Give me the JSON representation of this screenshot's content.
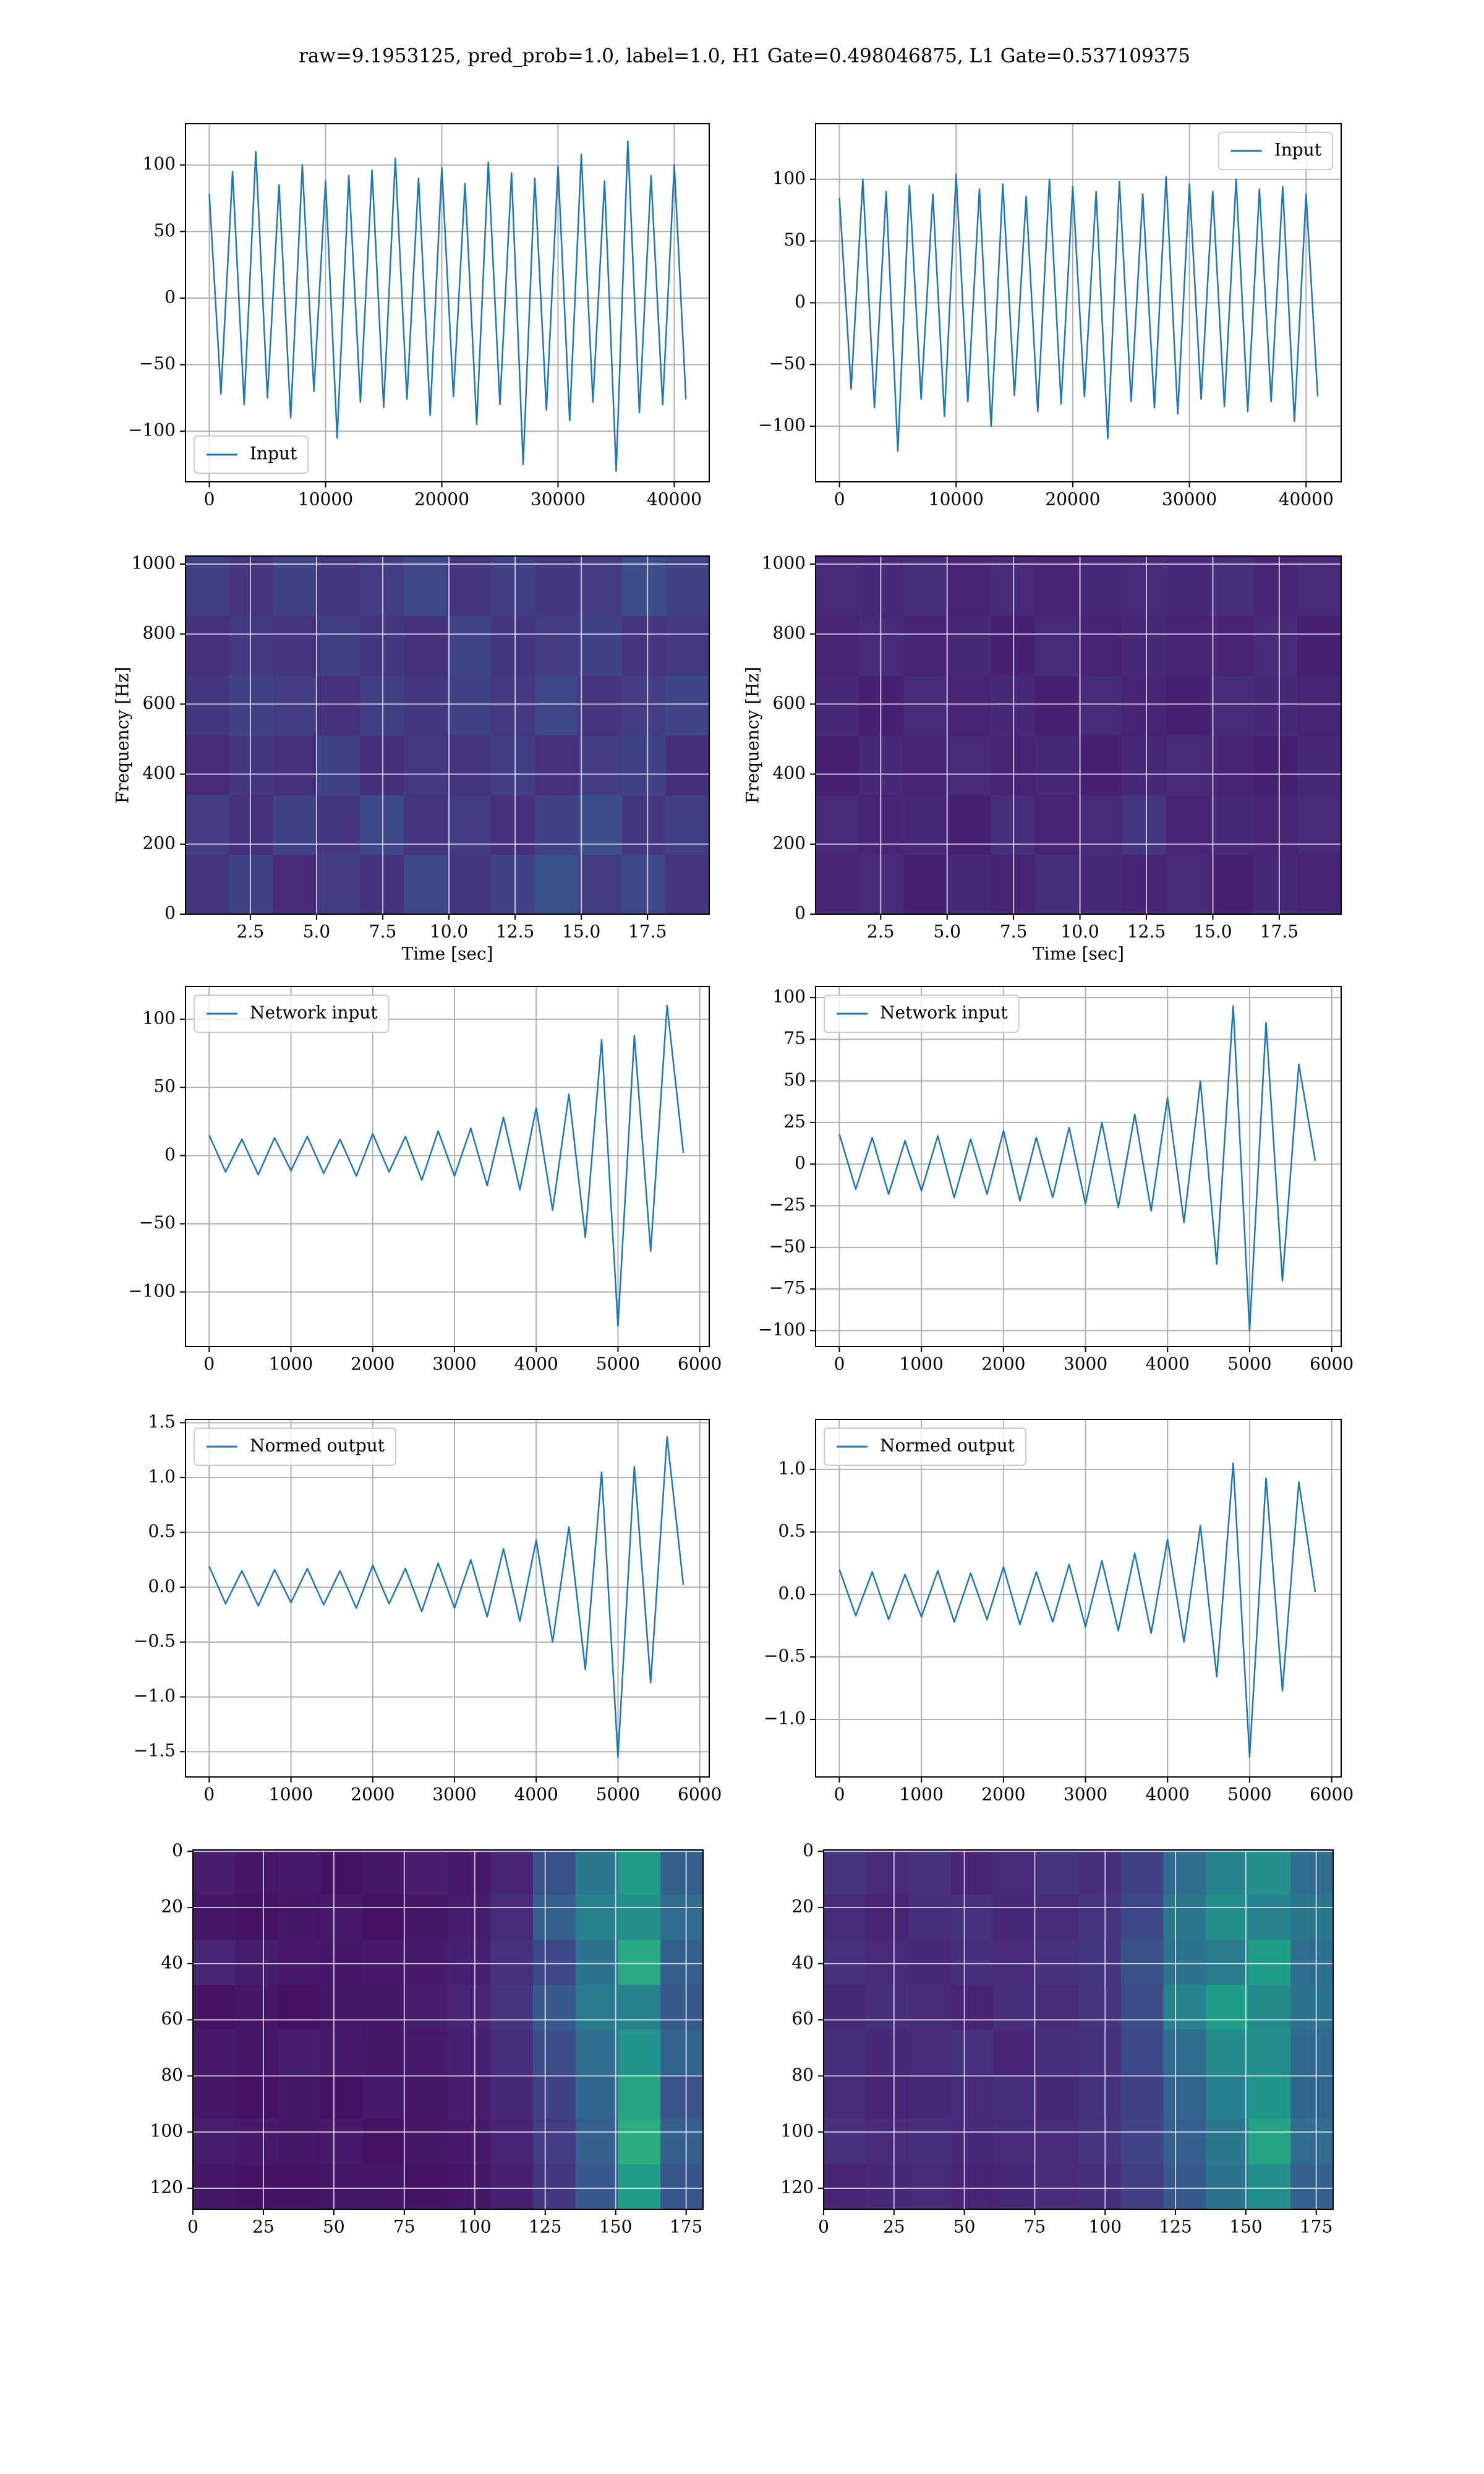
{
  "title": "raw=9.1953125, pred_prob=1.0, label=1.0, H1 Gate=0.498046875, L1 Gate=0.537109375",
  "chart_data": [
    {
      "type": "line",
      "legend": "lower left",
      "grid": true,
      "x": [
        0,
        1000,
        2000,
        3000,
        4000,
        5000,
        6000,
        7000,
        8000,
        9000,
        10000,
        11000,
        12000,
        13000,
        14000,
        15000,
        16000,
        17000,
        18000,
        19000,
        20000,
        21000,
        22000,
        23000,
        24000,
        25000,
        26000,
        27000,
        28000,
        29000,
        30000,
        31000,
        32000,
        33000,
        34000,
        35000,
        36000,
        37000,
        38000,
        39000,
        40000,
        41000
      ],
      "series": [
        {
          "name": "Input",
          "color": "#1f77b4",
          "values": [
            78,
            -72,
            95,
            -80,
            110,
            -75,
            85,
            -90,
            100,
            -70,
            88,
            -105,
            92,
            -78,
            96,
            -82,
            105,
            -76,
            90,
            -88,
            98,
            -74,
            86,
            -95,
            102,
            -80,
            94,
            -125,
            90,
            -84,
            99,
            -92,
            108,
            -78,
            88,
            -130,
            118,
            -86,
            92,
            -80,
            100,
            -76
          ]
        }
      ],
      "xlim": [
        -2048,
        43008
      ],
      "ylim": [
        -138,
        131
      ],
      "xticks": [
        0,
        10000,
        20000,
        30000,
        40000
      ],
      "yticks": [
        {
          "value": -100,
          "label": "−100"
        },
        {
          "value": -50,
          "label": "−50"
        },
        0,
        50,
        100
      ]
    },
    {
      "type": "line",
      "legend": "upper right",
      "grid": true,
      "x": [
        0,
        1000,
        2000,
        3000,
        4000,
        5000,
        6000,
        7000,
        8000,
        9000,
        10000,
        11000,
        12000,
        13000,
        14000,
        15000,
        16000,
        17000,
        18000,
        19000,
        20000,
        21000,
        22000,
        23000,
        24000,
        25000,
        26000,
        27000,
        28000,
        29000,
        30000,
        31000,
        32000,
        33000,
        34000,
        35000,
        36000,
        37000,
        38000,
        39000,
        40000,
        41000
      ],
      "series": [
        {
          "name": "Input",
          "color": "#1f77b4",
          "values": [
            85,
            -70,
            100,
            -85,
            90,
            -120,
            95,
            -78,
            88,
            -92,
            104,
            -80,
            92,
            -100,
            96,
            -75,
            86,
            -88,
            100,
            -82,
            94,
            -76,
            90,
            -110,
            98,
            -80,
            88,
            -85,
            102,
            -90,
            96,
            -78,
            90,
            -84,
            100,
            -88,
            92,
            -80,
            94,
            -96,
            88,
            -76
          ]
        }
      ],
      "xlim": [
        -2048,
        43008
      ],
      "ylim": [
        -145,
        145
      ],
      "xticks": [
        0,
        10000,
        20000,
        30000,
        40000
      ],
      "yticks": [
        {
          "value": -100,
          "label": "−100"
        },
        {
          "value": -50,
          "label": "−50"
        },
        0,
        50,
        100
      ]
    },
    {
      "type": "heatmap",
      "colormap": "viridis",
      "grid": true,
      "xlabel": "Time [sec]",
      "ylabel": "Frequency [Hz]",
      "xlim": [
        0.05,
        19.83
      ],
      "ylim": [
        0,
        1023
      ],
      "xticks": [
        2.5,
        {
          "value": 5,
          "label": "5.0"
        },
        7.5,
        {
          "value": 10,
          "label": "10.0"
        },
        12.5,
        {
          "value": 15,
          "label": "15.0"
        },
        17.5
      ],
      "yticks": [
        0,
        200,
        400,
        600,
        800,
        1000
      ],
      "z": [
        [
          0.15,
          0.2,
          0.12,
          0.18,
          0.14,
          0.22,
          0.16,
          0.2,
          0.25,
          0.18,
          0.22,
          0.15
        ],
        [
          0.18,
          0.14,
          0.2,
          0.16,
          0.22,
          0.15,
          0.18,
          0.14,
          0.2,
          0.24,
          0.16,
          0.19
        ],
        [
          0.12,
          0.16,
          0.14,
          0.2,
          0.13,
          0.17,
          0.15,
          0.19,
          0.14,
          0.18,
          0.2,
          0.13
        ],
        [
          0.16,
          0.2,
          0.18,
          0.14,
          0.19,
          0.16,
          0.2,
          0.17,
          0.22,
          0.15,
          0.18,
          0.21
        ],
        [
          0.14,
          0.17,
          0.15,
          0.19,
          0.16,
          0.14,
          0.21,
          0.16,
          0.18,
          0.2,
          0.15,
          0.17
        ],
        [
          0.19,
          0.15,
          0.2,
          0.16,
          0.18,
          0.22,
          0.15,
          0.19,
          0.16,
          0.18,
          0.24,
          0.2
        ]
      ]
    },
    {
      "type": "heatmap",
      "colormap": "viridis",
      "grid": true,
      "xlabel": "Time [sec]",
      "ylabel": "Frequency [Hz]",
      "xlim": [
        0.05,
        19.83
      ],
      "ylim": [
        0,
        1023
      ],
      "xticks": [
        2.5,
        {
          "value": 5,
          "label": "5.0"
        },
        7.5,
        {
          "value": 10,
          "label": "10.0"
        },
        12.5,
        {
          "value": 15,
          "label": "15.0"
        },
        17.5
      ],
      "yticks": [
        0,
        200,
        400,
        600,
        800,
        1000
      ],
      "z": [
        [
          0.1,
          0.12,
          0.09,
          0.11,
          0.1,
          0.13,
          0.11,
          0.1,
          0.12,
          0.09,
          0.11,
          0.1
        ],
        [
          0.12,
          0.1,
          0.11,
          0.09,
          0.13,
          0.1,
          0.12,
          0.16,
          0.1,
          0.11,
          0.1,
          0.12
        ],
        [
          0.09,
          0.11,
          0.1,
          0.12,
          0.1,
          0.11,
          0.09,
          0.11,
          0.12,
          0.1,
          0.09,
          0.11
        ],
        [
          0.11,
          0.09,
          0.12,
          0.1,
          0.11,
          0.09,
          0.12,
          0.1,
          0.09,
          0.12,
          0.11,
          0.1
        ],
        [
          0.1,
          0.12,
          0.1,
          0.11,
          0.09,
          0.12,
          0.1,
          0.11,
          0.1,
          0.1,
          0.12,
          0.09
        ],
        [
          0.12,
          0.11,
          0.13,
          0.1,
          0.12,
          0.1,
          0.11,
          0.12,
          0.11,
          0.13,
          0.1,
          0.12
        ]
      ]
    },
    {
      "type": "line",
      "legend": "upper left",
      "grid": true,
      "x": [
        0,
        200,
        400,
        600,
        800,
        1000,
        1200,
        1400,
        1600,
        1800,
        2000,
        2200,
        2400,
        2600,
        2800,
        3000,
        3200,
        3400,
        3600,
        3800,
        4000,
        4200,
        4400,
        4600,
        4800,
        5000,
        5200,
        5400,
        5600,
        5800
      ],
      "series": [
        {
          "name": "Network input",
          "color": "#1f77b4",
          "values": [
            15,
            -12,
            12,
            -14,
            13,
            -11,
            14,
            -13,
            12,
            -15,
            16,
            -12,
            14,
            -18,
            18,
            -15,
            20,
            -22,
            28,
            -25,
            35,
            -40,
            45,
            -60,
            85,
            -125,
            88,
            -70,
            110,
            2
          ]
        }
      ],
      "xlim": [
        -290,
        6116
      ],
      "ylim": [
        -140,
        124
      ],
      "xticks": [
        0,
        1000,
        2000,
        3000,
        4000,
        5000,
        6000
      ],
      "yticks": [
        {
          "value": -100,
          "label": "−100"
        },
        {
          "value": -50,
          "label": "−50"
        },
        0,
        50,
        100
      ]
    },
    {
      "type": "line",
      "legend": "upper left",
      "grid": true,
      "x": [
        0,
        200,
        400,
        600,
        800,
        1000,
        1200,
        1400,
        1600,
        1800,
        2000,
        2200,
        2400,
        2600,
        2800,
        3000,
        3200,
        3400,
        3600,
        3800,
        4000,
        4200,
        4400,
        4600,
        4800,
        5000,
        5200,
        5400,
        5600,
        5800
      ],
      "series": [
        {
          "name": "Network input",
          "color": "#1f77b4",
          "values": [
            18,
            -15,
            16,
            -18,
            14,
            -16,
            17,
            -20,
            15,
            -18,
            20,
            -22,
            16,
            -20,
            22,
            -24,
            25,
            -26,
            30,
            -28,
            40,
            -35,
            50,
            -60,
            95,
            -100,
            85,
            -70,
            60,
            2
          ]
        }
      ],
      "xlim": [
        -290,
        6116
      ],
      "ylim": [
        -109.5,
        106.7
      ],
      "xticks": [
        0,
        1000,
        2000,
        3000,
        4000,
        5000,
        6000
      ],
      "yticks": [
        {
          "value": -100,
          "label": "−100"
        },
        {
          "value": -75,
          "label": "−75"
        },
        {
          "value": -50,
          "label": "−50"
        },
        {
          "value": -25,
          "label": "−25"
        },
        0,
        25,
        50,
        75,
        100
      ]
    },
    {
      "type": "line",
      "legend": "upper left",
      "grid": true,
      "x": [
        0,
        200,
        400,
        600,
        800,
        1000,
        1200,
        1400,
        1600,
        1800,
        2000,
        2200,
        2400,
        2600,
        2800,
        3000,
        3200,
        3400,
        3600,
        3800,
        4000,
        4200,
        4400,
        4600,
        4800,
        5000,
        5200,
        5400,
        5600,
        5800
      ],
      "series": [
        {
          "name": "Normed output",
          "color": "#1f77b4",
          "values": [
            0.19,
            -0.15,
            0.15,
            -0.17,
            0.16,
            -0.14,
            0.17,
            -0.16,
            0.15,
            -0.19,
            0.2,
            -0.15,
            0.17,
            -0.22,
            0.22,
            -0.19,
            0.25,
            -0.27,
            0.35,
            -0.31,
            0.43,
            -0.5,
            0.55,
            -0.75,
            1.05,
            -1.55,
            1.1,
            -0.87,
            1.37,
            0.02
          ]
        }
      ],
      "xlim": [
        -290,
        6116
      ],
      "ylim": [
        -1.73,
        1.53
      ],
      "xticks": [
        0,
        1000,
        2000,
        3000,
        4000,
        5000,
        6000
      ],
      "yticks": [
        {
          "value": -1.5,
          "label": "−1.5"
        },
        {
          "value": -1,
          "label": "−1.0"
        },
        {
          "value": -0.5,
          "label": "−0.5"
        },
        {
          "value": 0,
          "label": "0.0"
        },
        0.5,
        {
          "value": 1,
          "label": "1.0"
        },
        1.5
      ]
    },
    {
      "type": "line",
      "legend": "upper left",
      "grid": true,
      "x": [
        0,
        200,
        400,
        600,
        800,
        1000,
        1200,
        1400,
        1600,
        1800,
        2000,
        2200,
        2400,
        2600,
        2800,
        3000,
        3200,
        3400,
        3600,
        3800,
        4000,
        4200,
        4400,
        4600,
        4800,
        5000,
        5200,
        5400,
        5600,
        5800
      ],
      "series": [
        {
          "name": "Normed output",
          "color": "#1f77b4",
          "values": [
            0.2,
            -0.17,
            0.18,
            -0.2,
            0.16,
            -0.18,
            0.19,
            -0.22,
            0.17,
            -0.2,
            0.22,
            -0.24,
            0.18,
            -0.22,
            0.24,
            -0.26,
            0.27,
            -0.29,
            0.33,
            -0.31,
            0.44,
            -0.38,
            0.55,
            -0.66,
            1.05,
            -1.3,
            0.93,
            -0.77,
            0.9,
            0.02
          ]
        }
      ],
      "xlim": [
        -290,
        6116
      ],
      "ylim": [
        -1.46,
        1.4
      ],
      "xticks": [
        0,
        1000,
        2000,
        3000,
        4000,
        5000,
        6000
      ],
      "yticks": [
        {
          "value": -1,
          "label": "−1.0"
        },
        {
          "value": -0.5,
          "label": "−0.5"
        },
        {
          "value": 0,
          "label": "0.0"
        },
        0.5,
        {
          "value": 1,
          "label": "1.0"
        }
      ]
    },
    {
      "type": "heatmap",
      "colormap": "viridis",
      "grid": true,
      "xlim": [
        0,
        181
      ],
      "ylim": [
        127.5,
        -0.5
      ],
      "xticks": [
        0,
        25,
        50,
        75,
        100,
        125,
        150,
        175
      ],
      "yticks": [
        0,
        20,
        40,
        60,
        80,
        100,
        120
      ],
      "z": [
        [
          0.08,
          0.06,
          0.07,
          0.05,
          0.06,
          0.08,
          0.07,
          0.1,
          0.25,
          0.4,
          0.55,
          0.3
        ],
        [
          0.06,
          0.05,
          0.06,
          0.07,
          0.05,
          0.06,
          0.08,
          0.12,
          0.3,
          0.45,
          0.5,
          0.35
        ],
        [
          0.1,
          0.08,
          0.07,
          0.06,
          0.07,
          0.07,
          0.09,
          0.14,
          0.22,
          0.38,
          0.6,
          0.3
        ],
        [
          0.05,
          0.06,
          0.05,
          0.06,
          0.06,
          0.08,
          0.1,
          0.15,
          0.28,
          0.42,
          0.45,
          0.28
        ],
        [
          0.07,
          0.06,
          0.08,
          0.07,
          0.06,
          0.07,
          0.09,
          0.13,
          0.24,
          0.36,
          0.52,
          0.32
        ],
        [
          0.06,
          0.05,
          0.06,
          0.05,
          0.07,
          0.06,
          0.08,
          0.11,
          0.2,
          0.33,
          0.58,
          0.26
        ],
        [
          0.08,
          0.07,
          0.06,
          0.07,
          0.05,
          0.06,
          0.07,
          0.1,
          0.18,
          0.3,
          0.62,
          0.3
        ],
        [
          0.06,
          0.05,
          0.05,
          0.06,
          0.06,
          0.05,
          0.06,
          0.09,
          0.16,
          0.28,
          0.55,
          0.27
        ]
      ]
    },
    {
      "type": "heatmap",
      "colormap": "viridis",
      "grid": true,
      "xlim": [
        0,
        181
      ],
      "ylim": [
        127.5,
        -0.5
      ],
      "xticks": [
        0,
        25,
        50,
        75,
        100,
        125,
        150,
        175
      ],
      "yticks": [
        0,
        20,
        40,
        60,
        80,
        100,
        120
      ],
      "z": [
        [
          0.15,
          0.12,
          0.14,
          0.1,
          0.12,
          0.15,
          0.13,
          0.2,
          0.35,
          0.45,
          0.5,
          0.35
        ],
        [
          0.12,
          0.1,
          0.13,
          0.14,
          0.11,
          0.12,
          0.15,
          0.22,
          0.4,
          0.5,
          0.45,
          0.4
        ],
        [
          0.14,
          0.12,
          0.11,
          0.13,
          0.12,
          0.14,
          0.16,
          0.25,
          0.38,
          0.42,
          0.55,
          0.36
        ],
        [
          0.11,
          0.13,
          0.12,
          0.1,
          0.13,
          0.12,
          0.15,
          0.24,
          0.45,
          0.55,
          0.48,
          0.38
        ],
        [
          0.13,
          0.11,
          0.12,
          0.14,
          0.1,
          0.13,
          0.14,
          0.22,
          0.36,
          0.48,
          0.5,
          0.34
        ],
        [
          0.12,
          0.1,
          0.11,
          0.12,
          0.13,
          0.11,
          0.14,
          0.2,
          0.32,
          0.44,
          0.52,
          0.33
        ],
        [
          0.14,
          0.12,
          0.13,
          0.11,
          0.12,
          0.12,
          0.15,
          0.21,
          0.3,
          0.4,
          0.58,
          0.35
        ],
        [
          0.1,
          0.11,
          0.12,
          0.1,
          0.11,
          0.12,
          0.13,
          0.19,
          0.28,
          0.38,
          0.5,
          0.3
        ]
      ]
    }
  ]
}
